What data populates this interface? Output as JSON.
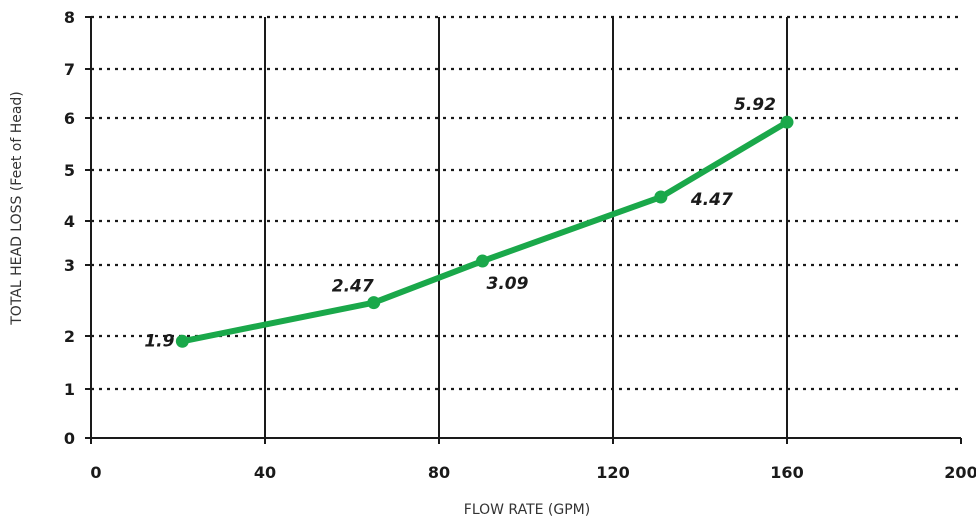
{
  "chart_data": {
    "type": "line",
    "xlabel": "FLOW RATE (GPM)",
    "ylabel": "TOTAL HEAD LOSS (Feet of Head)",
    "xlim": [
      0,
      200
    ],
    "x_ticks": [
      0,
      40,
      80,
      120,
      160,
      200
    ],
    "x_tick_labels": [
      "0",
      "40",
      "80",
      "120",
      "160",
      "200"
    ],
    "y_tick_labels": [
      "0",
      "1",
      "2",
      "3",
      "4",
      "5",
      "6",
      "7",
      "8"
    ],
    "y_tick_values": [
      0,
      1,
      2,
      3,
      4,
      5,
      6,
      7,
      8
    ],
    "x": [
      21,
      65,
      90,
      131,
      160
    ],
    "y": [
      1.9,
      2.47,
      3.09,
      4.47,
      5.92
    ],
    "data_labels": [
      "1.9",
      "2.47",
      "3.09",
      "4.47",
      "5.92"
    ],
    "line_color": "#1aa84a",
    "grid": true,
    "grid_vertical_style": "solid",
    "grid_horizontal_style": "dotted"
  }
}
